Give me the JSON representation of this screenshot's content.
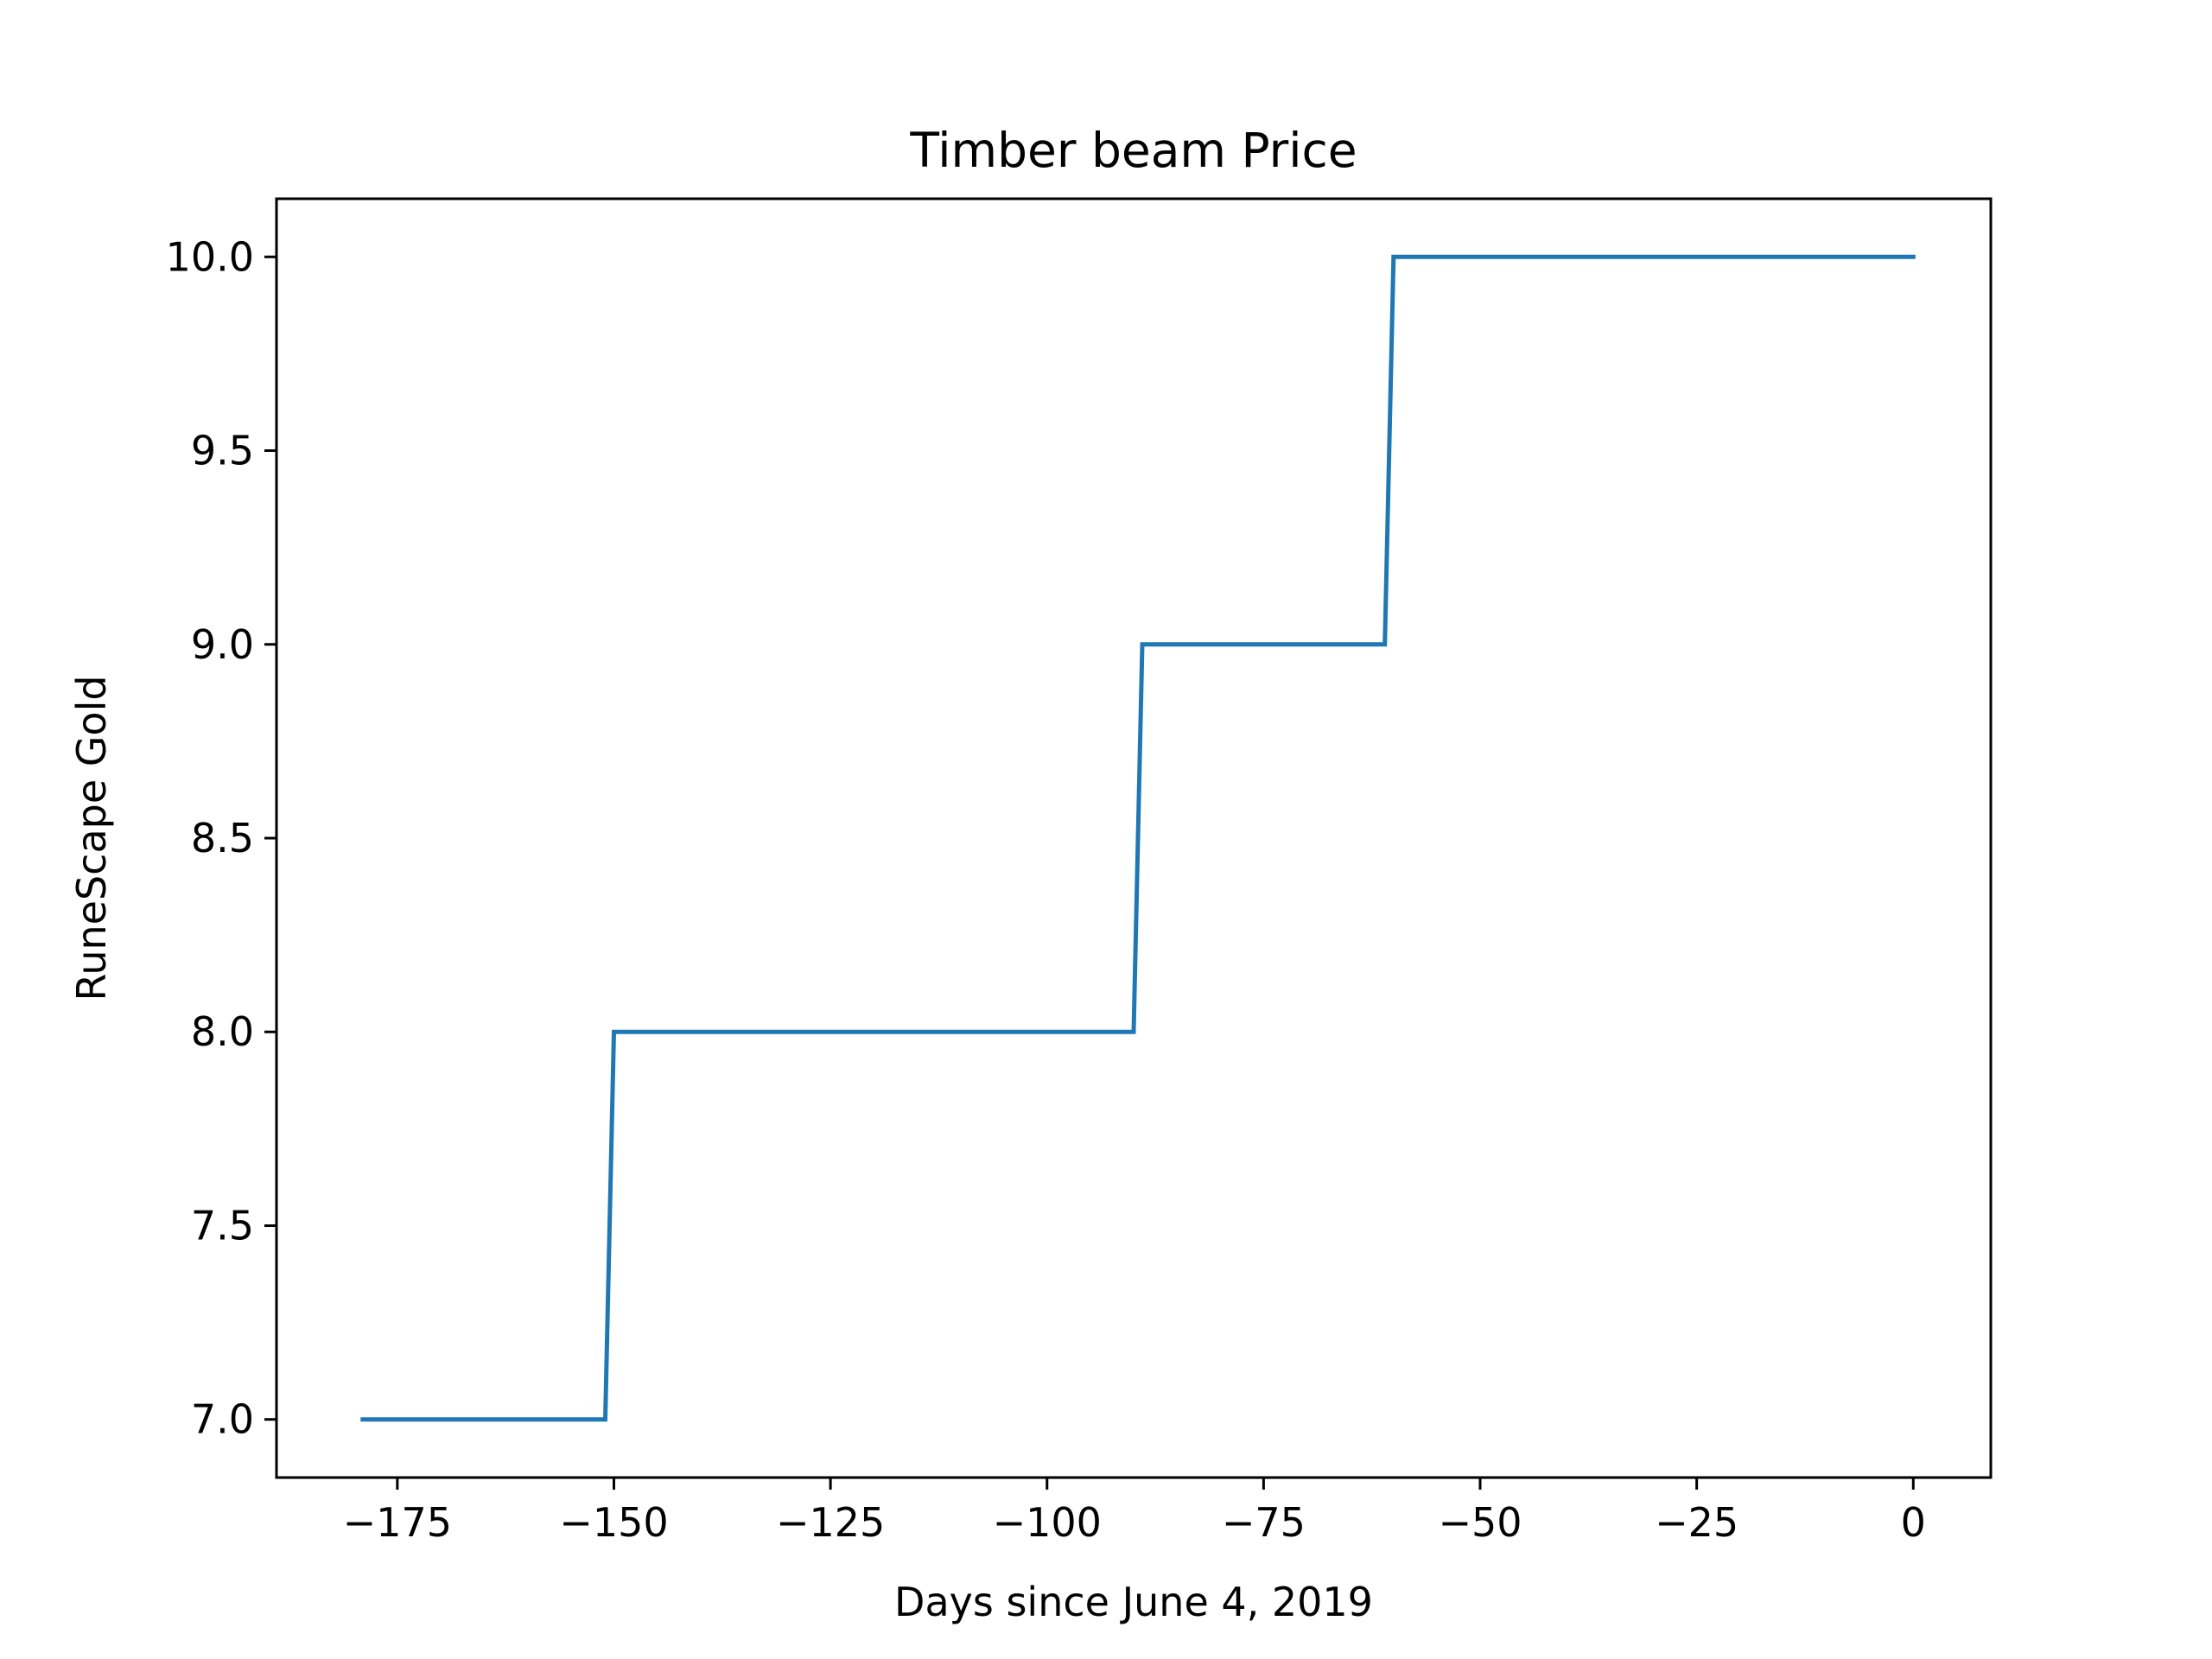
{
  "chart_data": {
    "type": "line",
    "title": "Timber beam Price",
    "xlabel": "Days since June 4, 2019",
    "ylabel": "RuneScape Gold",
    "xlim": [
      -188.95,
      8.95
    ],
    "ylim": [
      6.85,
      10.15
    ],
    "grid": false,
    "xticks": [
      -175,
      -150,
      -125,
      -100,
      -75,
      -50,
      -25,
      0
    ],
    "xtick_labels": [
      "−175",
      "−150",
      "−125",
      "−100",
      "−75",
      "−50",
      "−25",
      "0"
    ],
    "yticks": [
      7.0,
      7.5,
      8.0,
      8.5,
      9.0,
      9.5,
      10.0
    ],
    "ytick_labels": [
      "7.0",
      "7.5",
      "8.0",
      "8.5",
      "9.0",
      "9.5",
      "10.0"
    ],
    "series": [
      {
        "color": "#1f77b4",
        "x": [
          -179,
          -151,
          -150,
          -90,
          -89,
          -61,
          -60,
          0
        ],
        "y": [
          7,
          7,
          8,
          8,
          9,
          9,
          10,
          10
        ]
      }
    ]
  }
}
